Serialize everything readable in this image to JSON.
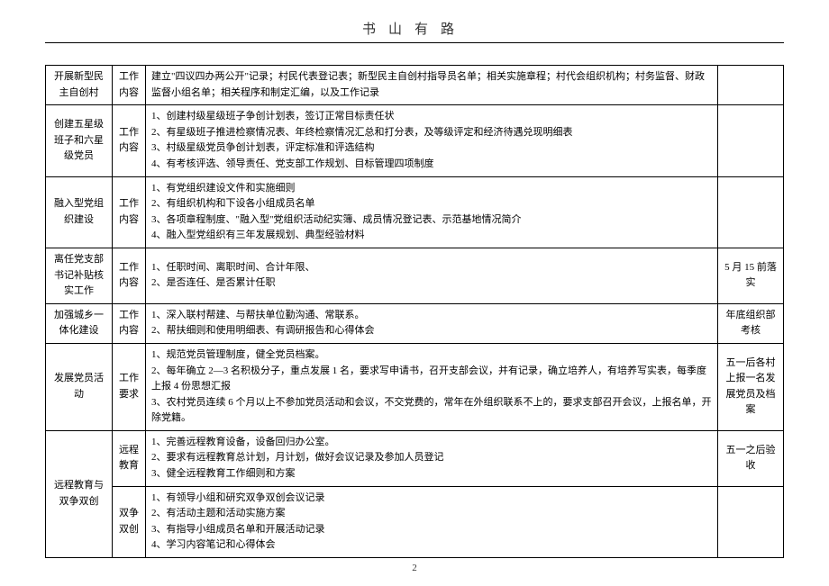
{
  "header": "书山有路",
  "pageNumber": "2",
  "rows": [
    {
      "c1": "开展新型民主自创村",
      "c2": "工作内容",
      "c3_lines": [
        "建立\"四议四办两公开\"记录；村民代表登记表；新型民主自创村指导员名单；相关实施章程；村代会组织机构；村务监督、财政监督小组名单；相关程序和制定汇编，以及工作记录"
      ],
      "c4": ""
    },
    {
      "c1": "创建五星级班子和六星级党员",
      "c2": "工作内容",
      "c3_lines": [
        "1、创建村级星级班子争创计划表，签订正常目标责任状",
        "2、有星级班子推进检察情况表、年终检察情况汇总和打分表，及等级评定和经济待遇兑现明细表",
        "3、村级星级党员争创计划表，评定标准和评选结构",
        "4、有考核评选、领导责任、党支部工作规划、目标管理四项制度"
      ],
      "c4": ""
    },
    {
      "c1": "融入型党组织建设",
      "c2": "工作内容",
      "c3_lines": [
        "1、有党组织建设文件和实施细则",
        "2、有组织机构和下设各小组成员名单",
        "3、各项章程制度、\"融入型\"党组织活动纪实簿、成员情况登记表、示范基地情况简介",
        "4、融入型党组织有三年发展规划、典型经验材料"
      ],
      "c4": ""
    },
    {
      "c1": "离任党支部书记补贴核实工作",
      "c2": "工作内容",
      "c3_lines": [
        "1、任职时间、离职时间、合计年限、",
        "2、是否连任、是否累计任职"
      ],
      "c4": "5 月 15 前落实"
    },
    {
      "c1": "加强城乡一体化建设",
      "c2": "工作内容",
      "c3_lines": [
        "1、深入联村帮建、与帮扶单位勤沟通、常联系。",
        "2、帮扶细则和使用明细表、有调研报告和心得体会"
      ],
      "c4": "年底组织部考核"
    },
    {
      "c1": "发展党员活动",
      "c2": "工作要求",
      "c3_lines": [
        "1、规范党员管理制度，健全党员档案。",
        "2、每年确立 2—3 名积极分子，重点发展 1 名，要求写申请书，召开支部会议，并有记录，确立培养人，有培养写实表，每季度上报 4 份思想汇报",
        "3、农村党员连续 6 个月以上不参加党员活动和会议，不交党费的，常年在外组织联系不上的，要求支部召开会议，上报名单，开除党籍。"
      ],
      "c4": "五一后各村上报一名发展党员及档案"
    },
    {
      "c1": "远程教育与双争双创",
      "c2": "远程教育",
      "c3_lines": [
        "1、完善远程教育设备，设备回归办公室。",
        "2、要求有远程教育总计划，月计划，做好会议记录及参加人员登记",
        "3、健全远程教育工作细则和方案"
      ],
      "c4": "五一之后验收"
    },
    {
      "c1": "",
      "c2": "双争双创",
      "c3_lines": [
        "1、有领导小组和研究双争双创会议记录",
        "2、有活动主题和活动实施方案",
        "3、有指导小组成员名单和开展活动记录",
        "4、学习内容笔记和心得体会"
      ],
      "c4": ""
    }
  ]
}
